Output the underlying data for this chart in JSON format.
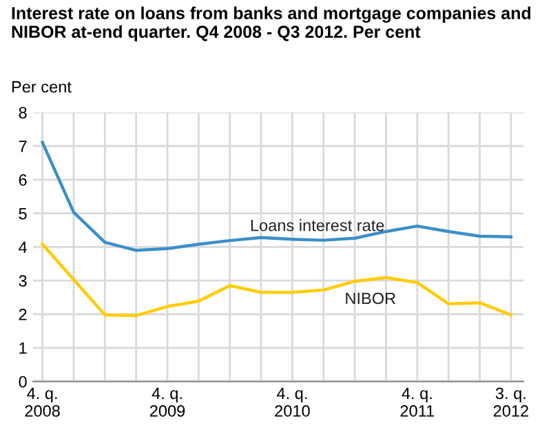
{
  "chart_data": {
    "type": "line",
    "title": "Interest rate on loans from banks and mortgage companies and NIBOR at-end quarter. Q4 2008 - Q3 2012. Per cent",
    "ylabel": "Per cent",
    "categories": [
      "4. q.\n2008",
      null,
      null,
      null,
      "4. q.\n2009",
      null,
      null,
      null,
      "4. q.\n2010",
      null,
      null,
      null,
      "4. q.\n2011",
      null,
      null,
      "3. q.\n2012"
    ],
    "series": [
      {
        "name": "Loans interest rate",
        "color": "#3a8fc8",
        "values": [
          7.11,
          5.03,
          4.14,
          3.9,
          3.95,
          4.08,
          4.19,
          4.28,
          4.23,
          4.2,
          4.26,
          4.46,
          4.62,
          4.46,
          4.32,
          4.3
        ]
      },
      {
        "name": "NIBOR",
        "color": "#ffcc00",
        "values": [
          4.08,
          3.03,
          1.98,
          1.96,
          2.23,
          2.39,
          2.85,
          2.65,
          2.65,
          2.72,
          2.98,
          3.09,
          2.94,
          2.31,
          2.34,
          1.98
        ]
      }
    ],
    "ylim": [
      0,
      8
    ],
    "yticks": [
      0,
      1,
      2,
      3,
      4,
      5,
      6,
      7,
      8
    ],
    "grid": true,
    "legend": false,
    "marker": "none",
    "line_style": "solid"
  }
}
